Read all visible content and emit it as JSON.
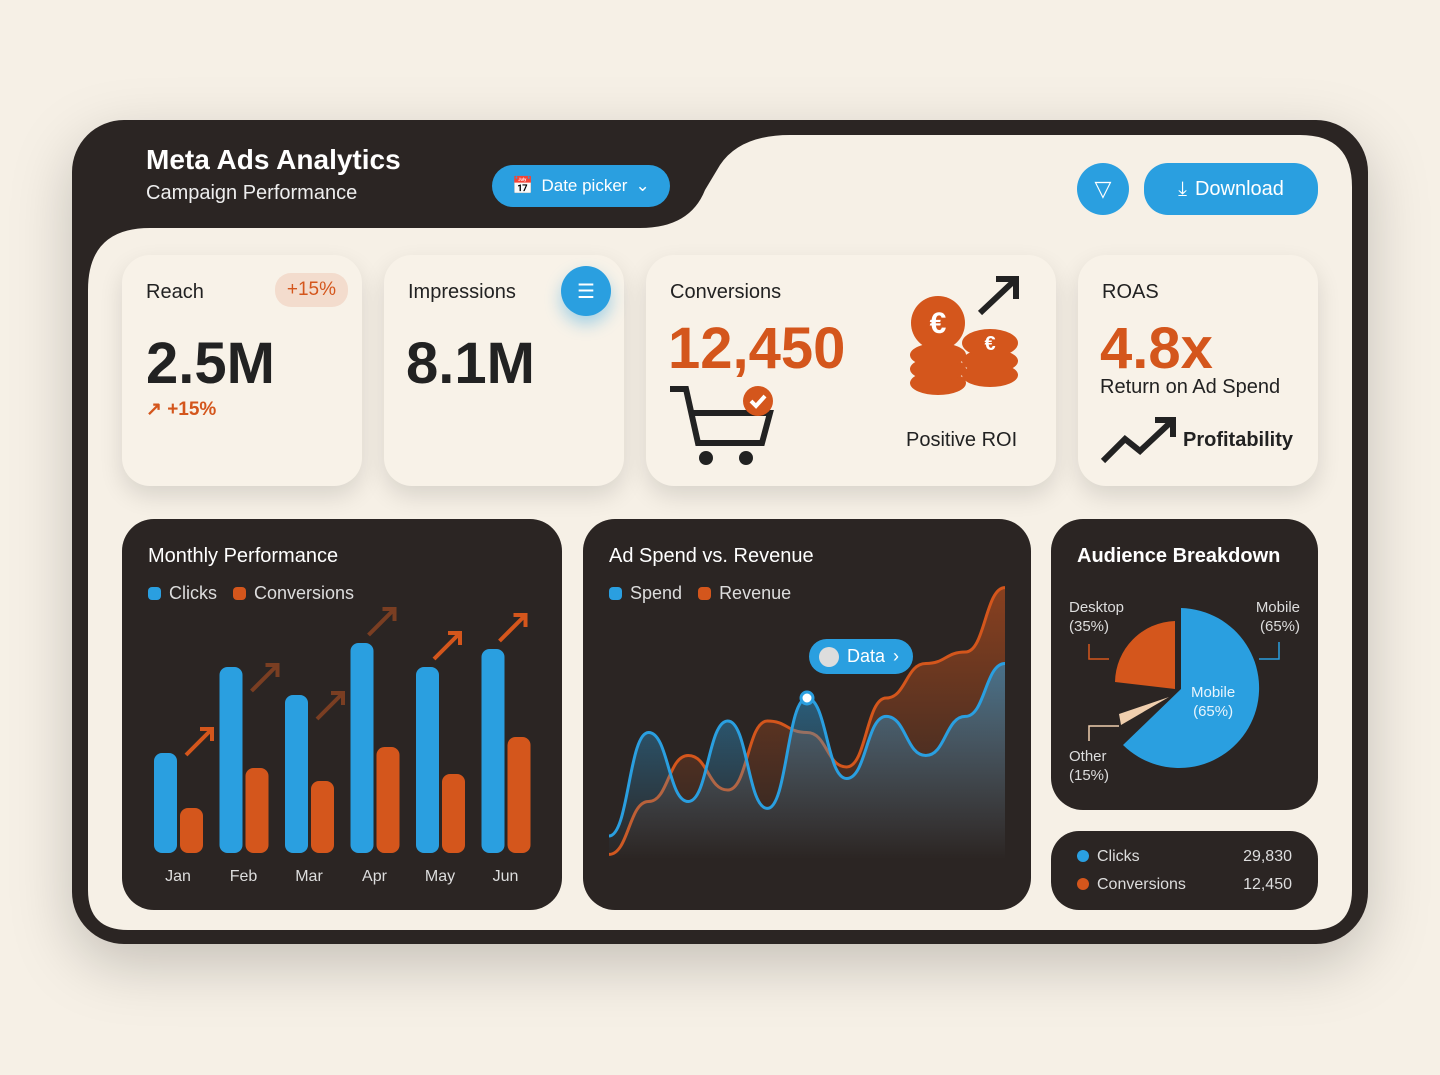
{
  "header": {
    "title": "Meta Ads Analytics",
    "subtitle": "Campaign Performance",
    "date_picker": "Date picker",
    "download": "Download"
  },
  "colors": {
    "blue": "#2a9fe0",
    "orange": "#d4561c",
    "dark": "#2b2523",
    "cream": "#f8f2e8"
  },
  "kpis": {
    "reach": {
      "label": "Reach",
      "badge": "+15%",
      "value": "2.5M",
      "change": "+15%"
    },
    "impressions": {
      "label": "Impressions",
      "value": "8.1M"
    },
    "conversions": {
      "label": "Conversions",
      "value": "12,450",
      "caption": "Positive ROI"
    },
    "roas": {
      "label": "ROAS",
      "value": "4.8x",
      "sub": "Return on Ad Spend",
      "caption": "Profitability"
    }
  },
  "chart_data": [
    {
      "type": "bar",
      "title": "Monthly Performance",
      "categories": [
        "Jan",
        "Feb",
        "Mar",
        "Apr",
        "May",
        "Jun"
      ],
      "series": [
        {
          "name": "Clicks",
          "values": [
            100,
            186,
            158,
            210,
            186,
            204
          ]
        },
        {
          "name": "Conversions",
          "values": [
            45,
            85,
            72,
            106,
            79,
            116
          ]
        }
      ],
      "legend": "top-left",
      "grid": false
    },
    {
      "type": "area",
      "title": "Ad Spend vs. Revenue",
      "tooltip": "Data",
      "series": [
        {
          "name": "Spend",
          "values": [
            10,
            55,
            25,
            60,
            22,
            70,
            35,
            62,
            45,
            62,
            85
          ]
        },
        {
          "name": "Revenue",
          "values": [
            2,
            25,
            45,
            30,
            60,
            55,
            40,
            70,
            85,
            90,
            118
          ]
        }
      ],
      "legend": "top-left",
      "grid": false
    },
    {
      "type": "pie",
      "title": "Audience Breakdown",
      "slices": [
        {
          "label": "Mobile",
          "pct": "(65%)",
          "value": 65
        },
        {
          "label": "Desktop",
          "pct": "(35%)",
          "value": 35
        },
        {
          "label": "Other",
          "pct": "(15%)",
          "value": 15
        }
      ]
    }
  ],
  "summary": [
    {
      "label": "Clicks",
      "value": "29,830"
    },
    {
      "label": "Conversions",
      "value": "12,450"
    }
  ]
}
